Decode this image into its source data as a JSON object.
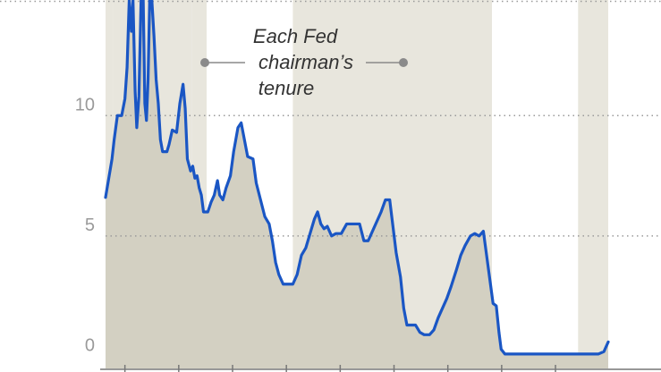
{
  "chart_data": {
    "type": "line",
    "title": "",
    "xlabel": "",
    "ylabel": "",
    "x_range": [
      1970.2,
      2016.9
    ],
    "ylim": [
      -0.5,
      14.8
    ],
    "y_ticks": [
      {
        "value": 0,
        "label": "0"
      },
      {
        "value": 5,
        "label": "5"
      },
      {
        "value": 10,
        "label": "10"
      }
    ],
    "x_tick_marks": [
      1972,
      1977,
      1982,
      1987,
      1992,
      1997,
      2002,
      2007,
      2012
    ],
    "grid": true,
    "annotation": {
      "lines": [
        "Each Fed",
        "chairman’s",
        "tenure"
      ]
    },
    "tenures": [
      {
        "start": 1970.2,
        "end": 1970.9,
        "shade": "#e8e6dd"
      },
      {
        "start": 1970.9,
        "end": 1978.2,
        "shade": "#e8e6dd"
      },
      {
        "start": 1978.2,
        "end": 1979.6,
        "shade": "#e8e6dd"
      },
      {
        "start": 1979.6,
        "end": 1987.6,
        "shade": "#ffffff"
      },
      {
        "start": 1987.6,
        "end": 2006.1,
        "shade": "#e8e6dd"
      },
      {
        "start": 2006.1,
        "end": 2014.1,
        "shade": "#ffffff"
      },
      {
        "start": 2014.1,
        "end": 2016.9,
        "shade": "#e8e6dd"
      }
    ],
    "series": [
      {
        "color": "#1a56c4",
        "fill": "#d3d0c2",
        "points": [
          [
            1970.2,
            6.6
          ],
          [
            1970.5,
            7.4
          ],
          [
            1970.8,
            8.2
          ],
          [
            1971.0,
            9.0
          ],
          [
            1971.3,
            10.0
          ],
          [
            1971.7,
            10.0
          ],
          [
            1972.0,
            10.7
          ],
          [
            1972.2,
            12.0
          ],
          [
            1972.4,
            14.8
          ],
          [
            1972.6,
            13.5
          ],
          [
            1972.75,
            14.8
          ],
          [
            1972.95,
            11.0
          ],
          [
            1973.1,
            9.5
          ],
          [
            1973.3,
            10.8
          ],
          [
            1973.5,
            14.8
          ],
          [
            1973.7,
            14.8
          ],
          [
            1973.85,
            10.5
          ],
          [
            1974.0,
            9.8
          ],
          [
            1974.15,
            11.5
          ],
          [
            1974.3,
            14.8
          ],
          [
            1974.5,
            14.8
          ],
          [
            1974.7,
            13.3
          ],
          [
            1974.9,
            11.5
          ],
          [
            1975.1,
            10.5
          ],
          [
            1975.3,
            9.0
          ],
          [
            1975.5,
            8.5
          ],
          [
            1975.9,
            8.5
          ],
          [
            1976.1,
            8.8
          ],
          [
            1976.4,
            9.4
          ],
          [
            1976.8,
            9.3
          ],
          [
            1977.1,
            10.5
          ],
          [
            1977.4,
            11.3
          ],
          [
            1977.6,
            10.3
          ],
          [
            1977.8,
            8.2
          ],
          [
            1978.1,
            7.7
          ],
          [
            1978.3,
            7.9
          ],
          [
            1978.5,
            7.4
          ],
          [
            1978.7,
            7.5
          ],
          [
            1978.9,
            7.0
          ],
          [
            1979.1,
            6.7
          ],
          [
            1979.3,
            6.0
          ],
          [
            1979.7,
            6.0
          ],
          [
            1980.0,
            6.4
          ],
          [
            1980.3,
            6.7
          ],
          [
            1980.6,
            7.3
          ],
          [
            1980.8,
            6.7
          ],
          [
            1981.1,
            6.5
          ],
          [
            1981.4,
            7.0
          ],
          [
            1981.8,
            7.5
          ],
          [
            1982.1,
            8.5
          ],
          [
            1982.5,
            9.5
          ],
          [
            1982.8,
            9.7
          ],
          [
            1983.1,
            9.0
          ],
          [
            1983.4,
            8.3
          ],
          [
            1983.9,
            8.2
          ],
          [
            1984.2,
            7.2
          ],
          [
            1984.6,
            6.5
          ],
          [
            1985.0,
            5.8
          ],
          [
            1985.4,
            5.5
          ],
          [
            1985.7,
            4.8
          ],
          [
            1986.0,
            3.9
          ],
          [
            1986.3,
            3.4
          ],
          [
            1986.7,
            3.0
          ],
          [
            1987.2,
            3.0
          ],
          [
            1987.6,
            3.0
          ],
          [
            1988.0,
            3.4
          ],
          [
            1988.4,
            4.2
          ],
          [
            1988.8,
            4.5
          ],
          [
            1989.2,
            5.1
          ],
          [
            1989.6,
            5.7
          ],
          [
            1989.9,
            6.0
          ],
          [
            1990.2,
            5.5
          ],
          [
            1990.5,
            5.3
          ],
          [
            1990.8,
            5.4
          ],
          [
            1991.2,
            5.0
          ],
          [
            1991.6,
            5.1
          ],
          [
            1992.1,
            5.1
          ],
          [
            1992.6,
            5.5
          ],
          [
            1993.2,
            5.5
          ],
          [
            1993.8,
            5.5
          ],
          [
            1994.2,
            4.8
          ],
          [
            1994.6,
            4.8
          ],
          [
            1995.0,
            5.2
          ],
          [
            1995.4,
            5.6
          ],
          [
            1995.8,
            6.0
          ],
          [
            1996.2,
            6.5
          ],
          [
            1996.6,
            6.5
          ],
          [
            1996.9,
            5.4
          ],
          [
            1997.2,
            4.3
          ],
          [
            1997.6,
            3.3
          ],
          [
            1997.9,
            2.0
          ],
          [
            1998.2,
            1.3
          ],
          [
            1998.6,
            1.3
          ],
          [
            1999.0,
            1.3
          ],
          [
            1999.4,
            1.0
          ],
          [
            1999.8,
            0.9
          ],
          [
            2000.3,
            0.9
          ],
          [
            2000.7,
            1.1
          ],
          [
            2001.1,
            1.6
          ],
          [
            2001.5,
            2.0
          ],
          [
            2001.9,
            2.4
          ],
          [
            2002.3,
            2.9
          ],
          [
            2002.8,
            3.6
          ],
          [
            2003.2,
            4.2
          ],
          [
            2003.6,
            4.6
          ],
          [
            2004.1,
            5.0
          ],
          [
            2004.5,
            5.1
          ],
          [
            2004.9,
            5.0
          ],
          [
            2005.3,
            5.2
          ],
          [
            2005.6,
            4.2
          ],
          [
            2005.9,
            3.2
          ],
          [
            2006.2,
            2.2
          ],
          [
            2006.5,
            2.1
          ],
          [
            2006.75,
            1.0
          ],
          [
            2006.95,
            0.3
          ],
          [
            2007.3,
            0.1
          ],
          [
            2008.0,
            0.1
          ],
          [
            2009.0,
            0.1
          ],
          [
            2010.0,
            0.1
          ],
          [
            2011.0,
            0.1
          ],
          [
            2012.0,
            0.1
          ],
          [
            2013.0,
            0.1
          ],
          [
            2014.0,
            0.1
          ],
          [
            2015.0,
            0.1
          ],
          [
            2016.0,
            0.1
          ],
          [
            2016.5,
            0.2
          ],
          [
            2016.9,
            0.6
          ]
        ]
      }
    ]
  }
}
